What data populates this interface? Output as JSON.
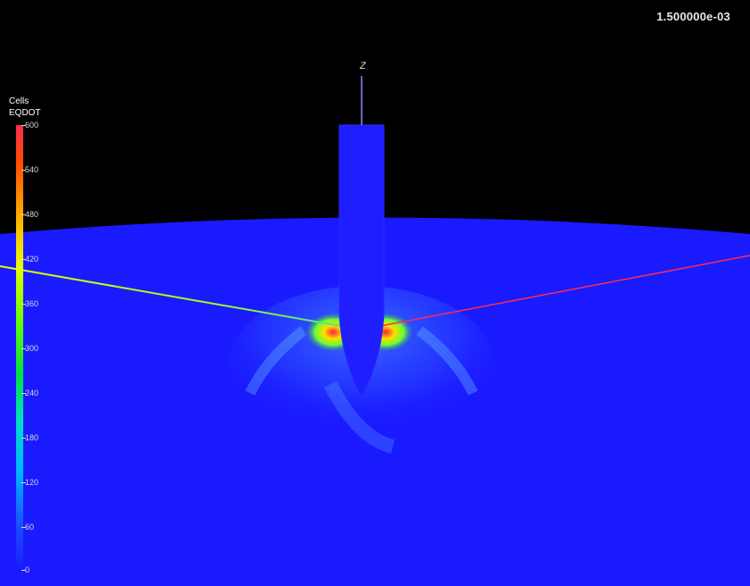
{
  "timestamp": "1.500000e-03",
  "legend": {
    "title_line1": "Cells",
    "title_line2": "EQDOT",
    "ticks": [
      "600",
      "540",
      "480",
      "420",
      "360",
      "300",
      "240",
      "180",
      "120",
      "60",
      "0"
    ]
  },
  "axis": {
    "z_label": "Z"
  },
  "colors": {
    "background": "#000000",
    "field": "#1a1aff",
    "hot": "#ff2a55"
  }
}
